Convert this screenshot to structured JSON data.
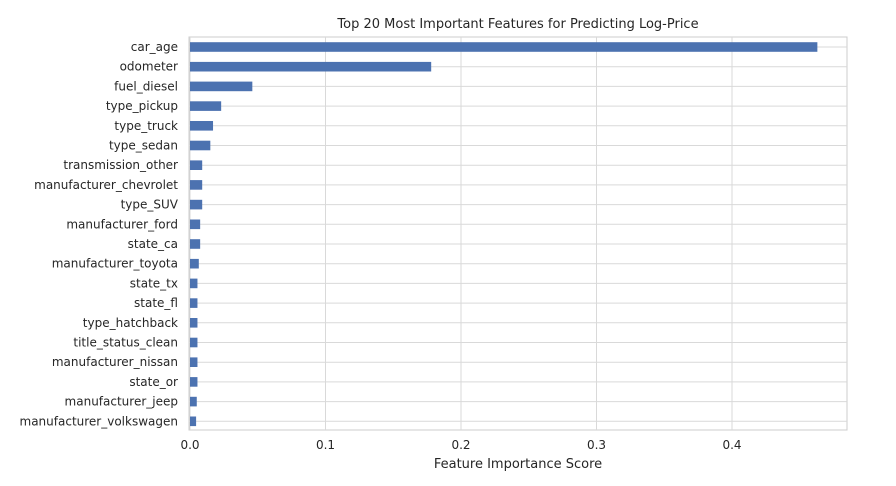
{
  "chart_data": {
    "type": "bar",
    "orientation": "horizontal",
    "title": "Top 20 Most Important Features for Predicting Log-Price",
    "xlabel": "Feature Importance Score",
    "ylabel": "",
    "xlim": [
      0,
      0.48
    ],
    "xticks": [
      0.0,
      0.1,
      0.2,
      0.3,
      0.4
    ],
    "xtick_labels": [
      "0.0",
      "0.1",
      "0.2",
      "0.3",
      "0.4"
    ],
    "grid": true,
    "bar_color": "#4c72b0",
    "categories": [
      "car_age",
      "odometer",
      "fuel_diesel",
      "type_pickup",
      "type_truck",
      "type_sedan",
      "transmission_other",
      "manufacturer_chevrolet",
      "type_SUV",
      "manufacturer_ford",
      "state_ca",
      "manufacturer_toyota",
      "state_tx",
      "state_fl",
      "type_hatchback",
      "title_status_clean",
      "manufacturer_nissan",
      "state_or",
      "manufacturer_jeep",
      "manufacturer_volkswagen"
    ],
    "values": [
      0.463,
      0.178,
      0.046,
      0.023,
      0.017,
      0.015,
      0.009,
      0.009,
      0.009,
      0.0075,
      0.0075,
      0.0065,
      0.0055,
      0.0055,
      0.0055,
      0.0055,
      0.0055,
      0.0055,
      0.005,
      0.0045
    ]
  }
}
